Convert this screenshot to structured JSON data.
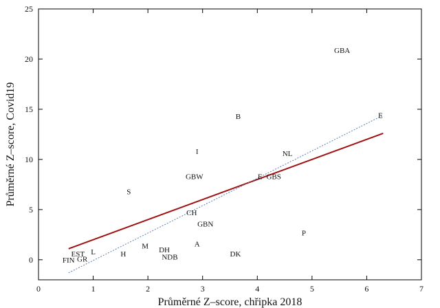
{
  "chart_data": {
    "type": "scatter",
    "xlabel": "Průměrné Z–score, chřipka 2018",
    "ylabel": "Průměrné Z–score, Covid19",
    "xlim": [
      0,
      7
    ],
    "ylim": [
      -2,
      25
    ],
    "x_ticks": [
      0,
      1,
      2,
      3,
      4,
      5,
      6,
      7
    ],
    "y_ticks": [
      0,
      5,
      10,
      15,
      20,
      25
    ],
    "grid": false,
    "points": [
      {
        "label": "GBA",
        "x": 5.55,
        "y": 20.9
      },
      {
        "label": "E",
        "x": 6.25,
        "y": 14.4
      },
      {
        "label": "B",
        "x": 3.65,
        "y": 14.3
      },
      {
        "label": "I",
        "x": 2.9,
        "y": 10.8
      },
      {
        "label": "NL",
        "x": 4.55,
        "y": 10.6
      },
      {
        "label": "GBW",
        "x": 2.85,
        "y": 8.3
      },
      {
        "label": "E",
        "x": 4.05,
        "y": 8.3
      },
      {
        "label": "GBS",
        "x": 4.3,
        "y": 8.3
      },
      {
        "label": "S",
        "x": 1.65,
        "y": 6.8
      },
      {
        "label": "CH",
        "x": 2.8,
        "y": 4.7
      },
      {
        "label": "GBN",
        "x": 3.05,
        "y": 3.6
      },
      {
        "label": "P",
        "x": 4.85,
        "y": 2.7
      },
      {
        "label": "A",
        "x": 2.9,
        "y": 1.6
      },
      {
        "label": "M",
        "x": 1.95,
        "y": 1.4
      },
      {
        "label": "DH",
        "x": 2.3,
        "y": 1.0
      },
      {
        "label": "DK",
        "x": 3.6,
        "y": 0.6
      },
      {
        "label": "NDB",
        "x": 2.4,
        "y": 0.3
      },
      {
        "label": "L",
        "x": 1.0,
        "y": 0.8
      },
      {
        "label": "H",
        "x": 1.55,
        "y": 0.6
      },
      {
        "label": "EST",
        "x": 0.72,
        "y": 0.6
      },
      {
        "label": "FIN",
        "x": 0.55,
        "y": 0.0
      },
      {
        "label": "GR",
        "x": 0.8,
        "y": 0.1
      }
    ],
    "lines": [
      {
        "style": "solid",
        "color": "#a01010",
        "x": [
          0.55,
          6.3
        ],
        "y": [
          1.1,
          12.6
        ]
      },
      {
        "style": "dotted",
        "color": "#5a7db0",
        "x": [
          0.55,
          6.3
        ],
        "y": [
          -1.3,
          14.4
        ]
      }
    ]
  }
}
